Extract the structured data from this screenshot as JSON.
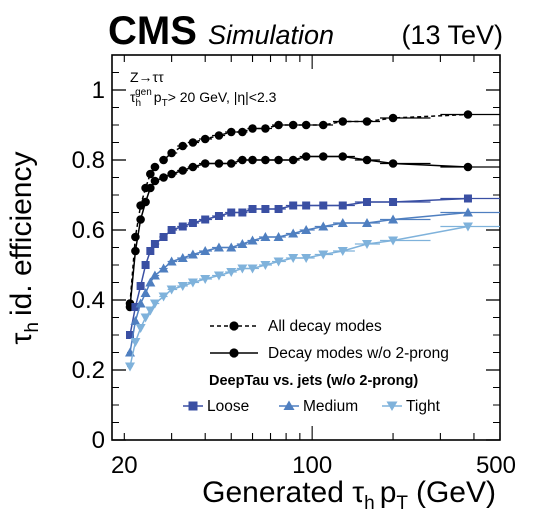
{
  "header": {
    "experiment": "CMS",
    "subtitle": "Simulation",
    "energy": "(13 TeV)"
  },
  "annotation": {
    "line1": "Z→ττ",
    "line2_tau": "τ",
    "line2_h": "h",
    "line2_gen": "gen",
    "line2_p": "p",
    "line2_T": "T",
    "line2_rest": "> 20 GeV, |η|<2.3"
  },
  "chart_data": {
    "type": "line",
    "xscale": "log",
    "xlim": [
      18.0,
      500
    ],
    "ylim": [
      0,
      1.1
    ],
    "xlabel_main": "Generated τ",
    "xlabel_sub_h": "h",
    "xlabel_p": "p",
    "xlabel_sub_T": "T",
    "xlabel_unit": "(GeV)",
    "ylabel_tau": "τ",
    "ylabel_sub": "h",
    "ylabel_rest": "id. efficiency",
    "xticks": [
      {
        "value": 20,
        "label": "20"
      },
      {
        "value": 100,
        "label": "100"
      },
      {
        "value": 500,
        "label": "500"
      }
    ],
    "yticks": [
      {
        "value": 0,
        "label": "0"
      },
      {
        "value": 0.2,
        "label": "0.2"
      },
      {
        "value": 0.4,
        "label": "0.4"
      },
      {
        "value": 0.6,
        "label": "0.6"
      },
      {
        "value": 0.8,
        "label": "0.8"
      },
      {
        "value": 1,
        "label": "1"
      }
    ],
    "legend_header": "DeepTau vs. jets (w/o 2-prong)",
    "legend_position": "bottom-right",
    "series": [
      {
        "name": "All decay modes",
        "color": "#000000",
        "marker": "circle",
        "dashed": true,
        "x": [
          21,
          22,
          23,
          24,
          25,
          26,
          28,
          30,
          33,
          36,
          40,
          45,
          50,
          55,
          60,
          67,
          75,
          85,
          95,
          110,
          130,
          160,
          200,
          380
        ],
        "y": [
          0.39,
          0.58,
          0.67,
          0.72,
          0.76,
          0.78,
          0.8,
          0.82,
          0.84,
          0.85,
          0.86,
          0.87,
          0.88,
          0.88,
          0.89,
          0.89,
          0.9,
          0.9,
          0.9,
          0.9,
          0.91,
          0.91,
          0.92,
          0.93
        ],
        "xerr_last": [
          300,
          500
        ]
      },
      {
        "name": "Decay modes w/o 2-prong",
        "color": "#000000",
        "marker": "circle",
        "dashed": false,
        "x": [
          21,
          22,
          23,
          24,
          25,
          26,
          28,
          30,
          33,
          36,
          40,
          45,
          50,
          55,
          60,
          67,
          75,
          85,
          95,
          110,
          130,
          160,
          200,
          380
        ],
        "y": [
          0.38,
          0.54,
          0.63,
          0.68,
          0.72,
          0.74,
          0.75,
          0.76,
          0.77,
          0.78,
          0.79,
          0.79,
          0.79,
          0.8,
          0.8,
          0.8,
          0.8,
          0.8,
          0.81,
          0.81,
          0.81,
          0.8,
          0.79,
          0.78
        ],
        "xerr_last": [
          300,
          500
        ]
      },
      {
        "name": "Loose",
        "color": "#3a4fa3",
        "marker": "square",
        "dashed": false,
        "x": [
          21,
          22,
          23,
          24,
          25,
          26,
          28,
          30,
          33,
          36,
          40,
          45,
          50,
          55,
          60,
          67,
          75,
          85,
          95,
          110,
          130,
          160,
          200,
          380
        ],
        "y": [
          0.3,
          0.38,
          0.44,
          0.5,
          0.54,
          0.56,
          0.58,
          0.6,
          0.61,
          0.62,
          0.63,
          0.64,
          0.65,
          0.65,
          0.66,
          0.66,
          0.66,
          0.67,
          0.67,
          0.67,
          0.67,
          0.68,
          0.68,
          0.69
        ],
        "xerr_last": [
          300,
          500
        ]
      },
      {
        "name": "Medium",
        "color": "#4f7fc0",
        "marker": "triangle-up",
        "dashed": false,
        "x": [
          21,
          22,
          23,
          24,
          25,
          26,
          28,
          30,
          33,
          36,
          40,
          45,
          50,
          55,
          60,
          67,
          75,
          85,
          95,
          110,
          130,
          160,
          200,
          380
        ],
        "y": [
          0.25,
          0.34,
          0.39,
          0.42,
          0.45,
          0.47,
          0.49,
          0.51,
          0.52,
          0.53,
          0.54,
          0.55,
          0.55,
          0.56,
          0.57,
          0.58,
          0.58,
          0.59,
          0.6,
          0.61,
          0.62,
          0.62,
          0.63,
          0.65
        ],
        "xerr_last": [
          300,
          500
        ]
      },
      {
        "name": "Tight",
        "color": "#7fb2db",
        "marker": "triangle-down",
        "dashed": false,
        "x": [
          21,
          22,
          23,
          24,
          25,
          26,
          28,
          30,
          33,
          36,
          40,
          45,
          50,
          55,
          60,
          67,
          75,
          85,
          95,
          110,
          130,
          160,
          200,
          380
        ],
        "y": [
          0.21,
          0.28,
          0.32,
          0.35,
          0.37,
          0.39,
          0.41,
          0.43,
          0.44,
          0.45,
          0.46,
          0.47,
          0.48,
          0.49,
          0.49,
          0.5,
          0.51,
          0.52,
          0.52,
          0.53,
          0.54,
          0.56,
          0.57,
          0.61
        ],
        "xerr_last": [
          300,
          500
        ]
      }
    ]
  }
}
